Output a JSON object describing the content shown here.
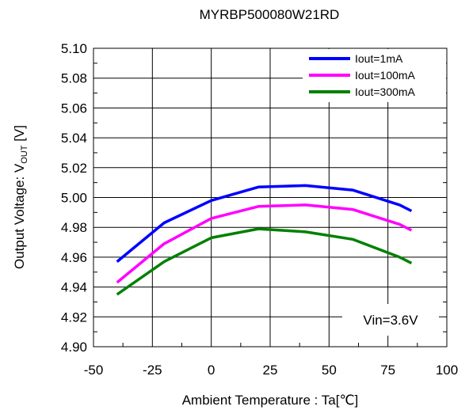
{
  "chart_data": {
    "type": "line",
    "title": "MYRBP500080W21RD",
    "xlabel": "Ambient Temperature : Ta[℃]",
    "ylabel": "Output Voltage: V",
    "ylabel_subscript": "OUT",
    "ylabel_unit": " [V]",
    "xlim": [
      -50,
      100
    ],
    "ylim": [
      4.9,
      5.1
    ],
    "xticks": [
      -50,
      -25,
      0,
      25,
      50,
      75,
      100
    ],
    "xtick_labels": [
      "-50",
      "-25",
      "0",
      "25",
      "50",
      "75",
      "100"
    ],
    "yticks": [
      4.9,
      4.92,
      4.94,
      4.96,
      4.98,
      5.0,
      5.02,
      5.04,
      5.06,
      5.08,
      5.1
    ],
    "ytick_labels": [
      "4.90",
      "4.92",
      "4.94",
      "4.96",
      "4.98",
      "5.00",
      "5.02",
      "5.04",
      "5.06",
      "5.08",
      "5.10"
    ],
    "grid": true,
    "legend_position": "top-right",
    "annotation": "Vin=3.6V",
    "series": [
      {
        "name": "Iout=1mA",
        "color": "#0000ff",
        "x": [
          -40,
          -20,
          0,
          20,
          40,
          60,
          80,
          85
        ],
        "y": [
          4.957,
          4.983,
          4.998,
          5.007,
          5.008,
          5.005,
          4.995,
          4.991
        ]
      },
      {
        "name": "Iout=100mA",
        "color": "#ff00ff",
        "x": [
          -40,
          -20,
          0,
          20,
          40,
          60,
          80,
          85
        ],
        "y": [
          4.943,
          4.969,
          4.986,
          4.994,
          4.995,
          4.992,
          4.982,
          4.978
        ]
      },
      {
        "name": "Iout=300mA",
        "color": "#008000",
        "x": [
          -40,
          -20,
          0,
          20,
          40,
          60,
          80,
          85
        ],
        "y": [
          4.935,
          4.957,
          4.973,
          4.979,
          4.977,
          4.972,
          4.96,
          4.956
        ]
      }
    ]
  }
}
